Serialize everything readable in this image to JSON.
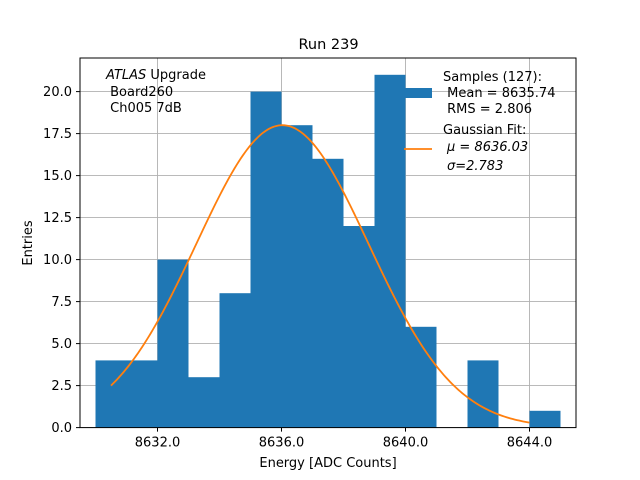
{
  "chart_data": {
    "type": "bar",
    "title": "Run 239",
    "xlabel": "Energy [ADC Counts]",
    "ylabel": "Entries",
    "xlim": [
      8629.5,
      8645.5
    ],
    "ylim": [
      0,
      22
    ],
    "grid": true,
    "bin_width": 1,
    "bin_edges": [
      8630,
      8631,
      8632,
      8633,
      8634,
      8635,
      8636,
      8637,
      8638,
      8639,
      8640,
      8641,
      8642,
      8643,
      8644
    ],
    "counts": [
      4,
      4,
      10,
      3,
      8,
      20,
      18,
      16,
      12,
      21,
      6,
      0,
      4,
      0,
      1
    ],
    "x_ticks": [
      8632,
      8636,
      8640,
      8644
    ],
    "x_tick_labels": [
      "8632.0",
      "8636.0",
      "8640.0",
      "8644.0"
    ],
    "y_ticks": [
      0,
      2.5,
      5,
      7.5,
      10,
      12.5,
      15,
      17.5,
      20
    ],
    "y_tick_labels": [
      "0.0",
      "2.5",
      "5.0",
      "7.5",
      "10.0",
      "12.5",
      "15.0",
      "17.5",
      "20.0"
    ],
    "fit": {
      "mu": 8636.03,
      "sigma": 2.783,
      "amplitude": 18.0,
      "x_range": [
        8630.5,
        8644.0
      ]
    },
    "colors": {
      "bars": "#1f77b4",
      "fit": "#ff7f0e",
      "grid": "#b0b0b0"
    },
    "legend_position": "top-right",
    "legend": {
      "samples_lines": [
        "Samples (127):",
        " Mean = 8635.74",
        " RMS = 2.806"
      ],
      "fit_lines": [
        "Gaussian Fit:",
        "μ = 8636.03",
        "σ=2.783"
      ]
    },
    "annotation": {
      "italic": "ATLAS",
      "rest": " Upgrade",
      "lines": [
        " Board260",
        " Ch005 7dB"
      ]
    }
  }
}
